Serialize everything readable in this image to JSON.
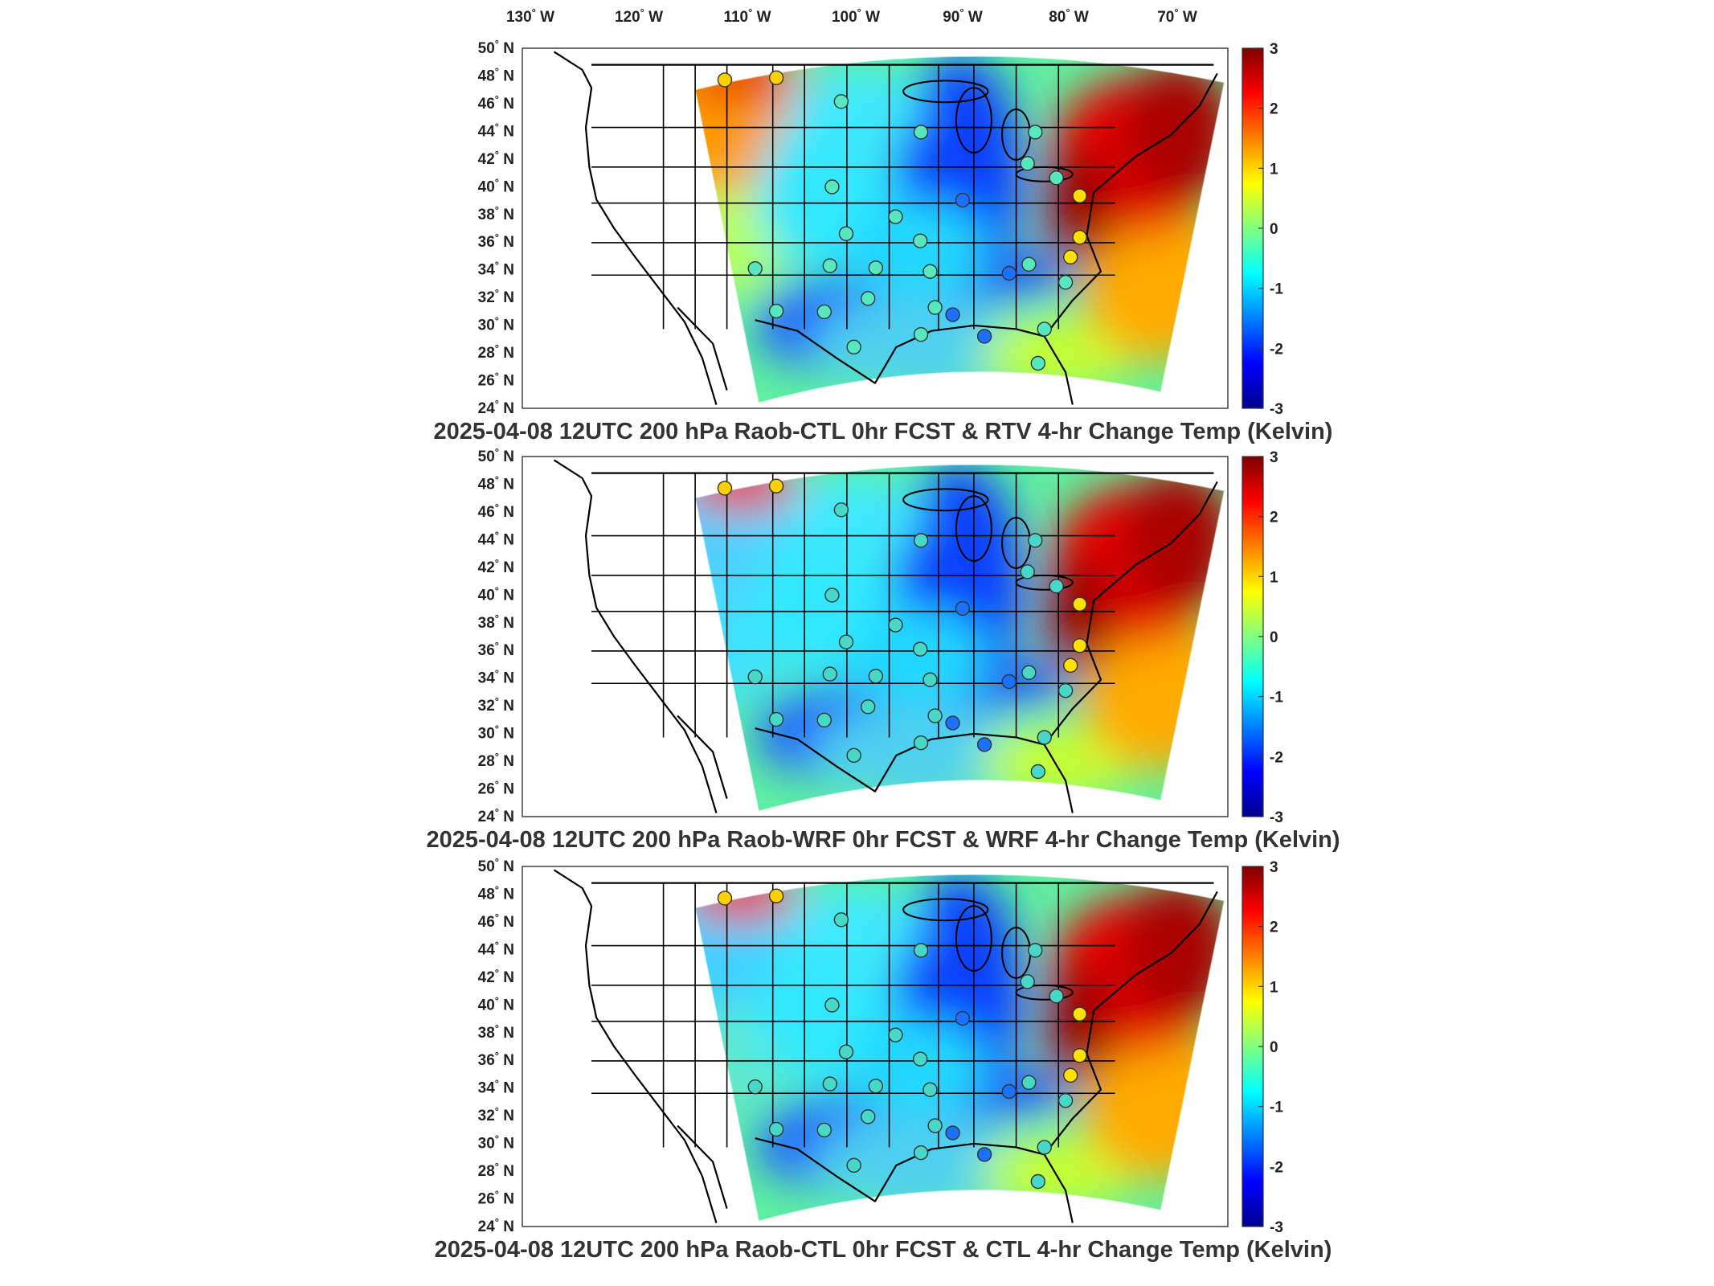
{
  "lon_labels": [
    {
      "deg": "130",
      "hemi": "W"
    },
    {
      "deg": "120",
      "hemi": "W"
    },
    {
      "deg": "110",
      "hemi": "W"
    },
    {
      "deg": "100",
      "hemi": "W"
    },
    {
      "deg": "90",
      "hemi": "W"
    },
    {
      "deg": "80",
      "hemi": "W"
    },
    {
      "deg": "70",
      "hemi": "W"
    }
  ],
  "lat_labels": [
    {
      "deg": "50",
      "hemi": "N"
    },
    {
      "deg": "48",
      "hemi": "N"
    },
    {
      "deg": "46",
      "hemi": "N"
    },
    {
      "deg": "44",
      "hemi": "N"
    },
    {
      "deg": "42",
      "hemi": "N"
    },
    {
      "deg": "40",
      "hemi": "N"
    },
    {
      "deg": "38",
      "hemi": "N"
    },
    {
      "deg": "36",
      "hemi": "N"
    },
    {
      "deg": "34",
      "hemi": "N"
    },
    {
      "deg": "32",
      "hemi": "N"
    },
    {
      "deg": "30",
      "hemi": "N"
    },
    {
      "deg": "28",
      "hemi": "N"
    },
    {
      "deg": "26",
      "hemi": "N"
    },
    {
      "deg": "24",
      "hemi": "N"
    }
  ],
  "colorbar": {
    "ticks": [
      "3",
      "2",
      "1",
      "0",
      "-1",
      "-2",
      "-3"
    ],
    "colormap": [
      "#00008f",
      "#0000ff",
      "#0080ff",
      "#00ffff",
      "#80ff80",
      "#ffff00",
      "#ff8000",
      "#ff0000",
      "#800000"
    ]
  },
  "panels": [
    {
      "title": "2025-04-08 12UTC 200 hPa Raob-CTL 0hr FCST & RTV 4-hr Change Temp (Kelvin)",
      "field_variant": "rtv"
    },
    {
      "title": "2025-04-08 12UTC 200 hPa Raob-WRF 0hr FCST & WRF 4-hr Change Temp (Kelvin)",
      "field_variant": "wrf"
    },
    {
      "title": "2025-04-08 12UTC 200 hPa Raob-CTL 0hr FCST & CTL 4-hr Change Temp (Kelvin)",
      "field_variant": "ctl"
    }
  ]
}
